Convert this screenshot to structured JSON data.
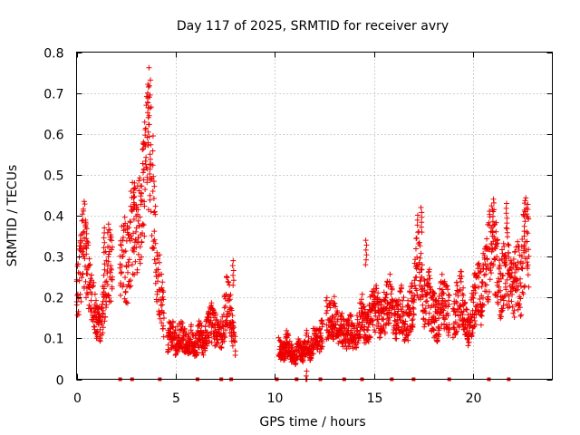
{
  "chart_data": {
    "type": "scatter",
    "title": "Day 117 of 2025, SRMTID for receiver avry",
    "xlabel": "GPS time / hours",
    "ylabel": "SRMTID / TECUs",
    "xlim": [
      0,
      24
    ],
    "ylim": [
      0,
      0.8
    ],
    "xticks": [
      "0",
      "5",
      "10",
      "15",
      "20"
    ],
    "xtick_values": [
      0,
      5,
      10,
      15,
      20
    ],
    "yticks": [
      "0",
      "0.1",
      "0.2",
      "0.3",
      "0.4",
      "0.5",
      "0.6",
      "0.7",
      "0.8"
    ],
    "ytick_values": [
      0,
      0.1,
      0.2,
      0.3,
      0.4,
      0.5,
      0.6,
      0.7,
      0.8
    ],
    "grid": true,
    "marker": "+",
    "color": "#ee0000",
    "series": [
      {
        "name": "SRMTID",
        "segments": [
          {
            "t": [
              0.0,
              0.2,
              0.4,
              0.6,
              0.8,
              1.0,
              1.2,
              1.4,
              1.6,
              1.8
            ],
            "v": [
              0.2,
              0.28,
              0.33,
              0.25,
              0.2,
              0.15,
              0.12,
              0.2,
              0.3,
              0.25
            ]
          },
          {
            "t": [
              2.2,
              2.4,
              2.6,
              2.8,
              3.0,
              3.2,
              3.4,
              3.6,
              3.8,
              4.0,
              4.2,
              4.4
            ],
            "v": [
              0.28,
              0.3,
              0.27,
              0.4,
              0.35,
              0.38,
              0.45,
              0.62,
              0.5,
              0.3,
              0.22,
              0.15
            ]
          },
          {
            "t": [
              4.6,
              4.8,
              5.0,
              5.2,
              5.4,
              5.6,
              5.8,
              6.0,
              6.2,
              6.4,
              6.6,
              6.8,
              7.0,
              7.2,
              7.4,
              7.6,
              7.8,
              8.0
            ],
            "v": [
              0.1,
              0.12,
              0.09,
              0.11,
              0.1,
              0.08,
              0.1,
              0.08,
              0.11,
              0.09,
              0.12,
              0.14,
              0.12,
              0.1,
              0.13,
              0.2,
              0.15,
              0.08
            ]
          },
          {
            "t": [
              10.2,
              10.4,
              10.6,
              10.8,
              11.0,
              11.2,
              11.4,
              11.6,
              11.8,
              12.0,
              12.2,
              12.4
            ],
            "v": [
              0.08,
              0.06,
              0.09,
              0.07,
              0.05,
              0.08,
              0.06,
              0.09,
              0.07,
              0.1,
              0.09,
              0.12
            ]
          },
          {
            "t": [
              12.6,
              12.8,
              13.0,
              13.2,
              13.4,
              13.6,
              13.8,
              14.0,
              14.2,
              14.4,
              14.6,
              14.8,
              15.0,
              15.2,
              15.4,
              15.6,
              15.8,
              16.0,
              16.2,
              16.4,
              16.6,
              16.8,
              17.0,
              17.2,
              17.4,
              17.6,
              17.8,
              18.0,
              18.2,
              18.4,
              18.6,
              18.8
            ],
            "v": [
              0.15,
              0.14,
              0.15,
              0.13,
              0.12,
              0.11,
              0.12,
              0.1,
              0.13,
              0.16,
              0.12,
              0.15,
              0.18,
              0.16,
              0.14,
              0.17,
              0.2,
              0.15,
              0.14,
              0.18,
              0.12,
              0.16,
              0.2,
              0.3,
              0.22,
              0.18,
              0.2,
              0.16,
              0.14,
              0.2,
              0.18,
              0.16
            ]
          },
          {
            "t": [
              19.0,
              19.2,
              19.4,
              19.6,
              19.8,
              20.0,
              20.2,
              20.4,
              20.6,
              20.8,
              21.0,
              21.2,
              21.4,
              21.6,
              21.8,
              22.0,
              22.2,
              22.4,
              22.6,
              22.8
            ],
            "v": [
              0.15,
              0.18,
              0.2,
              0.14,
              0.12,
              0.18,
              0.22,
              0.2,
              0.25,
              0.3,
              0.35,
              0.28,
              0.22,
              0.3,
              0.25,
              0.2,
              0.28,
              0.22,
              0.35,
              0.33
            ]
          }
        ],
        "peaks": [
          {
            "t": 3.6,
            "v": 0.7
          },
          {
            "t": 3.7,
            "v": 0.55
          },
          {
            "t": 2.9,
            "v": 0.48
          },
          {
            "t": 17.4,
            "v": 0.42
          },
          {
            "t": 21.7,
            "v": 0.43
          },
          {
            "t": 21.0,
            "v": 0.41
          },
          {
            "t": 22.6,
            "v": 0.41
          },
          {
            "t": 14.6,
            "v": 0.34
          },
          {
            "t": 0.5,
            "v": 0.38
          },
          {
            "t": 1.4,
            "v": 0.37
          },
          {
            "t": 7.9,
            "v": 0.29
          },
          {
            "t": 11.6,
            "v": 0.02
          }
        ]
      }
    ],
    "zero_markers_hours": [
      2.2,
      2.8,
      4.2,
      6.1,
      7.3,
      7.8,
      10.1,
      11.1,
      12.3,
      13.5,
      14.4,
      15.9,
      17.0,
      18.8,
      20.8,
      21.8
    ]
  }
}
